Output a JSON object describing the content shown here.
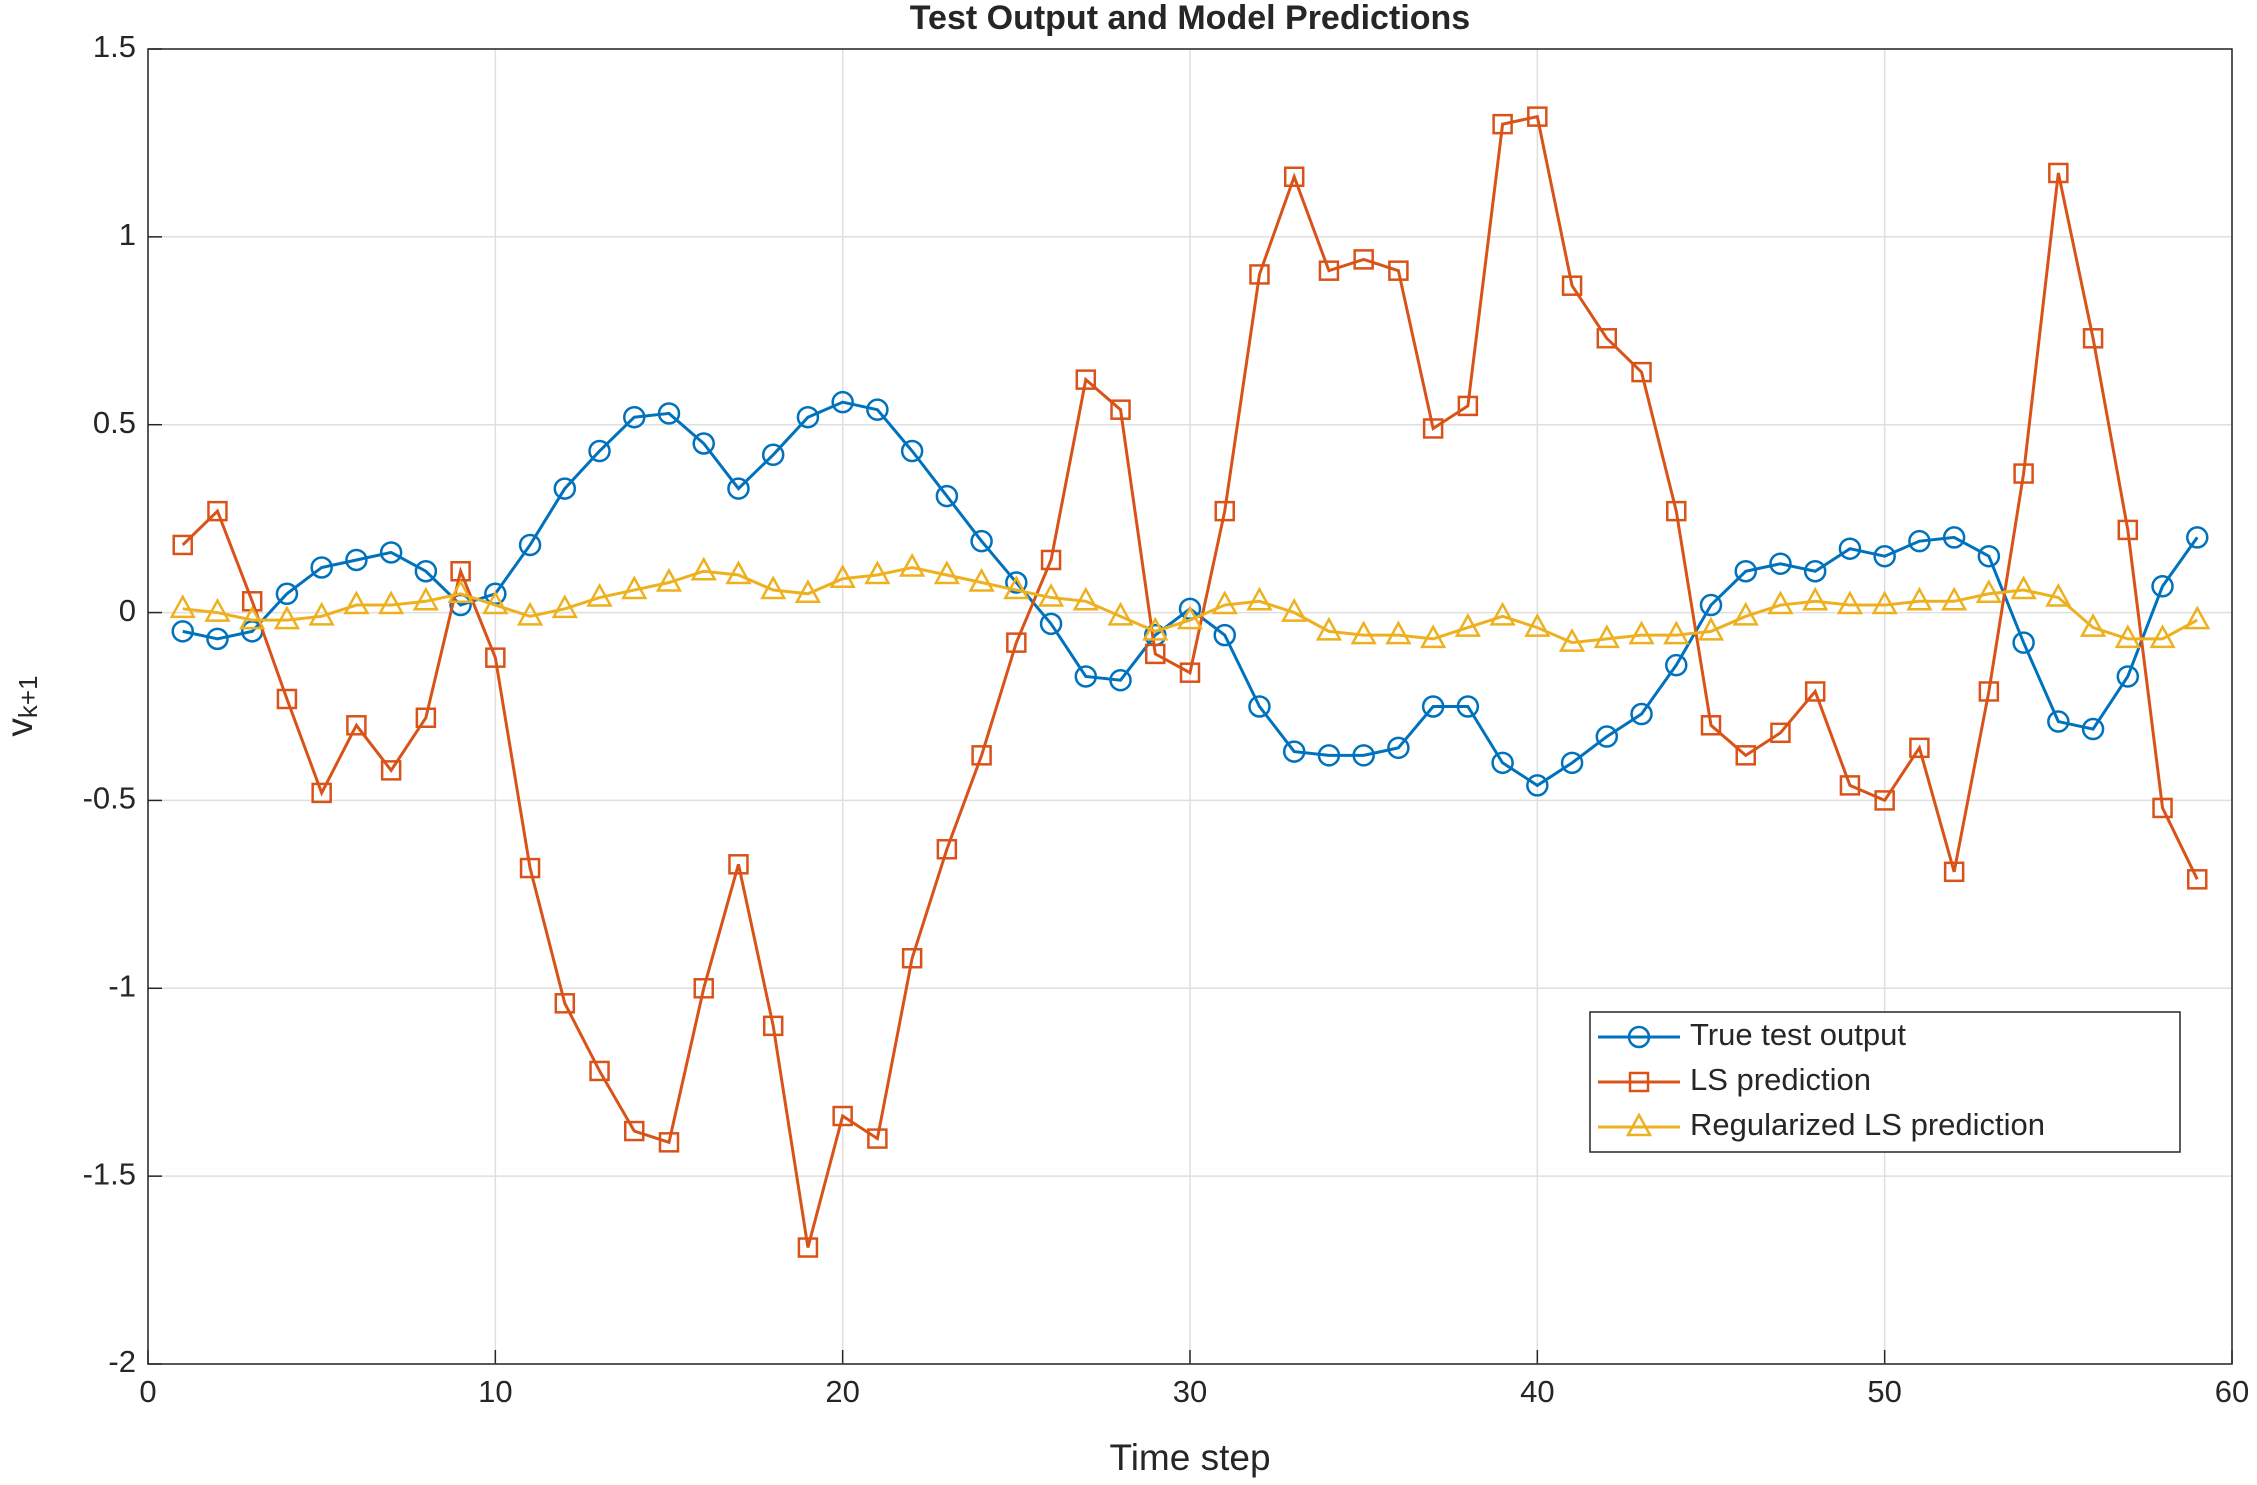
{
  "chart_data": {
    "type": "line",
    "title": "Test Output and Model Predictions",
    "x_label": "Time step",
    "y_label": "v",
    "y_label_subscript": "k+1",
    "x": [
      1,
      2,
      3,
      4,
      5,
      6,
      7,
      8,
      9,
      10,
      11,
      12,
      13,
      14,
      15,
      16,
      17,
      18,
      19,
      20,
      21,
      22,
      23,
      24,
      25,
      26,
      27,
      28,
      29,
      30,
      31,
      32,
      33,
      34,
      35,
      36,
      37,
      38,
      39,
      40,
      41,
      42,
      43,
      44,
      45,
      46,
      47,
      48,
      49,
      50,
      51,
      52,
      53,
      54,
      55,
      56,
      57,
      58,
      59
    ],
    "series": [
      {
        "name": "True test output",
        "color": "#0072BD",
        "marker": "circle",
        "values": [
          -0.05,
          -0.07,
          -0.05,
          0.05,
          0.12,
          0.14,
          0.16,
          0.11,
          0.02,
          0.05,
          0.18,
          0.33,
          0.43,
          0.52,
          0.53,
          0.45,
          0.33,
          0.42,
          0.52,
          0.56,
          0.54,
          0.43,
          0.31,
          0.19,
          0.08,
          -0.03,
          -0.17,
          -0.18,
          -0.06,
          0.01,
          -0.06,
          -0.25,
          -0.37,
          -0.38,
          -0.38,
          -0.36,
          -0.25,
          -0.25,
          -0.4,
          -0.46,
          -0.4,
          -0.33,
          -0.27,
          -0.14,
          0.02,
          0.11,
          0.13,
          0.11,
          0.17,
          0.15,
          0.19,
          0.2,
          0.15,
          -0.08,
          -0.29,
          -0.31,
          -0.17,
          0.07,
          0.2
        ]
      },
      {
        "name": "LS prediction",
        "color": "#D95319",
        "marker": "square",
        "values": [
          0.18,
          0.27,
          0.03,
          -0.23,
          -0.48,
          -0.3,
          -0.42,
          -0.28,
          0.11,
          -0.12,
          -0.68,
          -1.04,
          -1.22,
          -1.38,
          -1.41,
          -1.0,
          -0.67,
          -1.1,
          -1.69,
          -1.34,
          -1.4,
          -0.92,
          -0.63,
          -0.38,
          -0.08,
          0.14,
          0.62,
          0.54,
          -0.11,
          -0.16,
          0.27,
          0.9,
          1.16,
          0.91,
          0.94,
          0.91,
          0.49,
          0.55,
          1.3,
          1.32,
          0.87,
          0.73,
          0.64,
          0.27,
          -0.3,
          -0.38,
          -0.32,
          -0.21,
          -0.46,
          -0.5,
          -0.36,
          -0.69,
          -0.21,
          0.37,
          1.17,
          0.73,
          0.22,
          -0.52,
          -0.71
        ]
      },
      {
        "name": "Regularized LS prediction",
        "color": "#EDB120",
        "marker": "triangle",
        "values": [
          0.01,
          0.0,
          -0.02,
          -0.02,
          -0.01,
          0.02,
          0.02,
          0.03,
          0.05,
          0.02,
          -0.01,
          0.01,
          0.04,
          0.06,
          0.08,
          0.11,
          0.1,
          0.06,
          0.05,
          0.09,
          0.1,
          0.12,
          0.1,
          0.08,
          0.06,
          0.04,
          0.03,
          -0.01,
          -0.05,
          -0.02,
          0.02,
          0.03,
          0.0,
          -0.05,
          -0.06,
          -0.06,
          -0.07,
          -0.04,
          -0.01,
          -0.04,
          -0.08,
          -0.07,
          -0.06,
          -0.06,
          -0.05,
          -0.01,
          0.02,
          0.03,
          0.02,
          0.02,
          0.03,
          0.03,
          0.05,
          0.06,
          0.04,
          -0.04,
          -0.07,
          -0.07,
          -0.02
        ]
      }
    ],
    "xlim": [
      0,
      60
    ],
    "xticks": [
      0,
      10,
      20,
      30,
      40,
      50,
      60
    ],
    "ylim": [
      -2,
      1.5
    ],
    "yticks": [
      -2,
      -1.5,
      -1,
      -0.5,
      0,
      0.5,
      1,
      1.5
    ],
    "grid": true,
    "legend_position": "lower right"
  }
}
